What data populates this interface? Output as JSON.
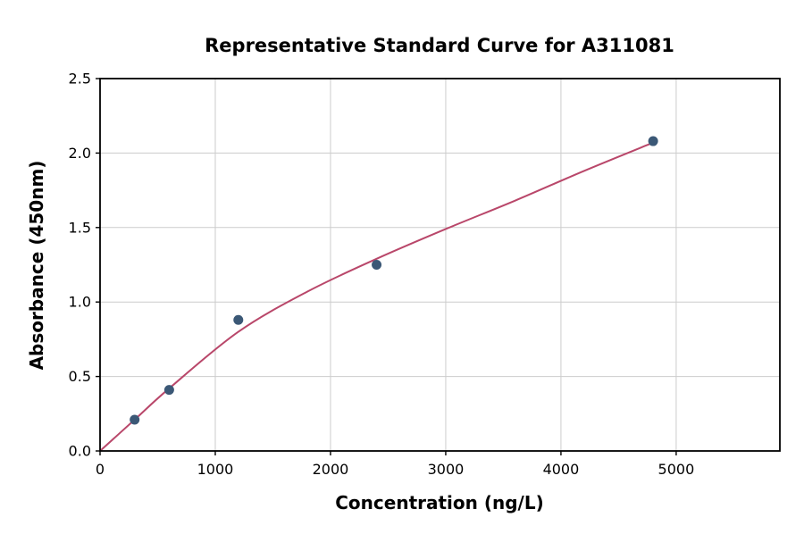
{
  "chart_data": {
    "type": "scatter",
    "title": "Representative Standard Curve for A311081",
    "xlabel": "Concentration (ng/L)",
    "ylabel": "Absorbance (450nm)",
    "xlim": [
      0,
      5900
    ],
    "ylim": [
      0,
      2.5
    ],
    "grid": true,
    "legend": "none",
    "xticks": [
      {
        "value": 0,
        "label": "0"
      },
      {
        "value": 1000,
        "label": "1000"
      },
      {
        "value": 2000,
        "label": "2000"
      },
      {
        "value": 3000,
        "label": "3000"
      },
      {
        "value": 4000,
        "label": "4000"
      },
      {
        "value": 5000,
        "label": "5000"
      }
    ],
    "yticks": [
      {
        "value": 0.0,
        "label": "0.0"
      },
      {
        "value": 0.5,
        "label": "0.5"
      },
      {
        "value": 1.0,
        "label": "1.0"
      },
      {
        "value": 1.5,
        "label": "1.5"
      },
      {
        "value": 2.0,
        "label": "2.0"
      },
      {
        "value": 2.5,
        "label": "2.5"
      }
    ],
    "points": [
      {
        "x": 300,
        "y": 0.21
      },
      {
        "x": 600,
        "y": 0.41
      },
      {
        "x": 1200,
        "y": 0.88
      },
      {
        "x": 2400,
        "y": 1.25
      },
      {
        "x": 4800,
        "y": 2.08
      }
    ],
    "fit_curve": [
      {
        "x": 0,
        "y": 0.0
      },
      {
        "x": 300,
        "y": 0.21
      },
      {
        "x": 600,
        "y": 0.42
      },
      {
        "x": 1200,
        "y": 0.8
      },
      {
        "x": 1800,
        "y": 1.07
      },
      {
        "x": 2400,
        "y": 1.29
      },
      {
        "x": 3000,
        "y": 1.49
      },
      {
        "x": 3600,
        "y": 1.68
      },
      {
        "x": 4200,
        "y": 1.88
      },
      {
        "x": 4800,
        "y": 2.07
      }
    ],
    "point_color": "#3b5876",
    "curve_color": "#b9476a",
    "grid_color": "#cccccc",
    "axis_color": "#000000"
  }
}
